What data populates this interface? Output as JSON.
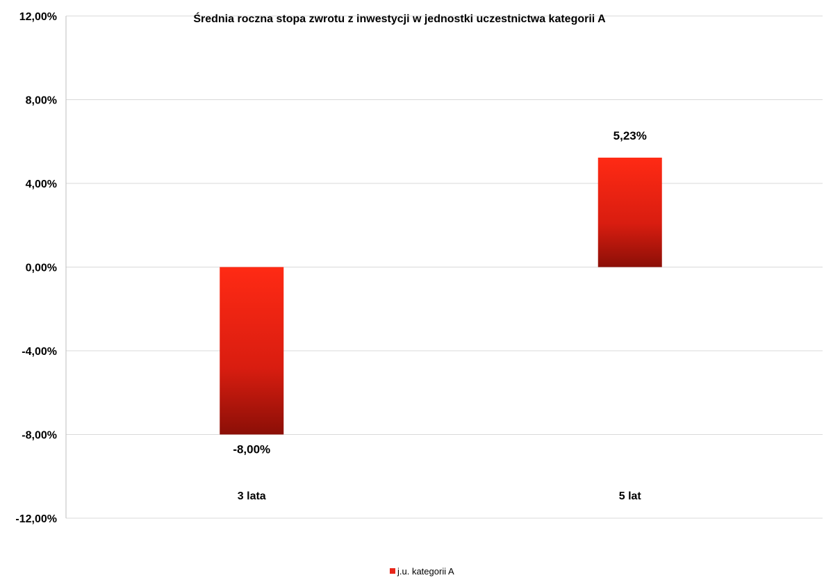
{
  "chart_data": {
    "type": "bar",
    "title": "Średnia roczna stopa zwrotu z inwestycji  w jednostki uczestnictwa kategorii A",
    "categories": [
      "3 lata",
      "5 lat"
    ],
    "series": [
      {
        "name": "j.u. kategorii A",
        "values": [
          -8.0,
          5.23
        ],
        "color": "#e8261a"
      }
    ],
    "data_labels": [
      "-8,00%",
      "5,23%"
    ],
    "ylim": [
      -12,
      12
    ],
    "yticks": [
      12,
      8,
      4,
      0,
      -4,
      -8,
      -12
    ],
    "ytick_labels": [
      "12,00%",
      "8,00%",
      "4,00%",
      "0,00%",
      "-4,00%",
      "-8,00%",
      "-12,00%"
    ],
    "grid": true,
    "legend_position": "bottom",
    "colors": {
      "bar_top": "#ff2a14",
      "bar_bottom": "#8b0f07",
      "legend_swatch": "#e8261a"
    }
  }
}
